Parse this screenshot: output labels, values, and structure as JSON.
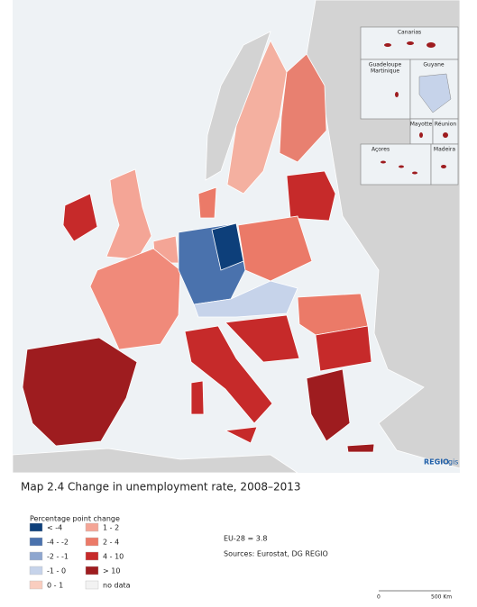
{
  "map": {
    "insets": {
      "canarias": "Canarias",
      "guadeloupe": "Guadeloupe",
      "martinique": "Martinique",
      "guyane": "Guyane",
      "mayotte": "Mayotte",
      "reunion": "Réunion",
      "acores": "Açores",
      "madeira": "Madeira"
    },
    "logo": {
      "bold": "REGIO",
      "light": "gis"
    }
  },
  "caption": {
    "title": "Map 2.4 Change in unemployment rate, 2008–2013",
    "legend": {
      "title": "Percentage point change",
      "items": [
        {
          "label": "< -4",
          "color": "#0d3f7a"
        },
        {
          "label": "-4 - -2",
          "color": "#4a72ad"
        },
        {
          "label": "-2 - -1",
          "color": "#8ea6cf"
        },
        {
          "label": "-1 - 0",
          "color": "#c6d3ea"
        },
        {
          "label": "0 - 1",
          "color": "#f9cdbf"
        },
        {
          "label": "1 - 2",
          "color": "#f4a596"
        },
        {
          "label": "2 - 4",
          "color": "#eb7a68"
        },
        {
          "label": "4 - 10",
          "color": "#c62a2a"
        },
        {
          "label": "> 10",
          "color": "#9e1c1f"
        },
        {
          "label": "no data",
          "color": "#f2f2f2"
        }
      ]
    },
    "eu_value": "EU-28 = 3.8",
    "sources": "Sources: Eurostat, DG REGIO",
    "scale": {
      "start": "0",
      "end": "500 Km"
    }
  }
}
